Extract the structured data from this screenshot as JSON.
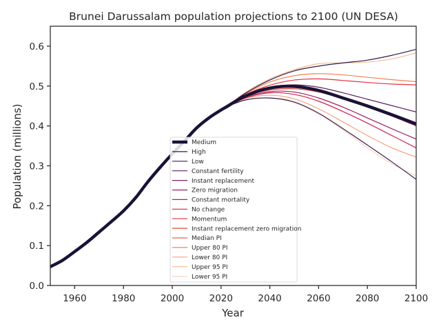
{
  "chart_data": {
    "type": "line",
    "title": "Brunei Darussalam population projections to 2100 (UN DESA)",
    "xlabel": "Year",
    "ylabel": "Population (millions)",
    "xlim": [
      1950,
      2100
    ],
    "ylim": [
      0.0,
      0.65
    ],
    "xticks": [
      1960,
      1980,
      2000,
      2020,
      2040,
      2060,
      2080,
      2100
    ],
    "yticks": [
      0.0,
      0.1,
      0.2,
      0.3,
      0.4,
      0.5,
      0.6
    ],
    "grid": false,
    "legend_position": "bottom-center",
    "historical": {
      "x": [
        1950,
        1955,
        1960,
        1965,
        1970,
        1975,
        1980,
        1985,
        1990,
        1995,
        2000,
        2005,
        2010,
        2015,
        2020,
        2022
      ],
      "y": [
        0.047,
        0.063,
        0.085,
        0.108,
        0.134,
        0.16,
        0.187,
        0.22,
        0.26,
        0.296,
        0.33,
        0.362,
        0.395,
        0.42,
        0.44,
        0.447
      ]
    },
    "series": [
      {
        "name": "Medium",
        "color": "#1b1236",
        "x": [
          2022,
          2030,
          2040,
          2050,
          2060,
          2070,
          2080,
          2090,
          2100
        ],
        "y": [
          0.447,
          0.475,
          0.495,
          0.499,
          0.489,
          0.47,
          0.45,
          0.428,
          0.405
        ]
      },
      {
        "name": "High",
        "color": "#2e1a4a",
        "x": [
          2022,
          2030,
          2040,
          2050,
          2060,
          2070,
          2080,
          2090,
          2100
        ],
        "y": [
          0.447,
          0.482,
          0.515,
          0.538,
          0.55,
          0.558,
          0.565,
          0.577,
          0.592
        ]
      },
      {
        "name": "Low",
        "color": "#3a1d50",
        "x": [
          2022,
          2030,
          2040,
          2050,
          2060,
          2070,
          2080,
          2090,
          2100
        ],
        "y": [
          0.447,
          0.465,
          0.47,
          0.46,
          0.432,
          0.393,
          0.352,
          0.31,
          0.266
        ]
      },
      {
        "name": "Constant fertility",
        "color": "#5c1f5b",
        "x": [
          2022,
          2030,
          2040,
          2050,
          2060,
          2070,
          2080,
          2090,
          2100
        ],
        "y": [
          0.447,
          0.476,
          0.497,
          0.503,
          0.497,
          0.483,
          0.467,
          0.451,
          0.435
        ]
      },
      {
        "name": "Instant replacement",
        "color": "#7d1f60",
        "x": [
          2022,
          2030,
          2040,
          2050,
          2060,
          2070,
          2080,
          2090,
          2100
        ],
        "y": [
          0.447,
          0.476,
          0.494,
          0.498,
          0.49,
          0.472,
          0.452,
          0.431,
          0.408
        ]
      },
      {
        "name": "Zero migration",
        "color": "#a01b60",
        "x": [
          2022,
          2030,
          2040,
          2050,
          2060,
          2070,
          2080,
          2090,
          2100
        ],
        "y": [
          0.447,
          0.472,
          0.486,
          0.485,
          0.47,
          0.447,
          0.42,
          0.393,
          0.367
        ]
      },
      {
        "name": "Constant mortality",
        "color": "#bb1a5a",
        "x": [
          2022,
          2030,
          2040,
          2050,
          2060,
          2070,
          2080,
          2090,
          2100
        ],
        "y": [
          0.447,
          0.474,
          0.493,
          0.497,
          0.487,
          0.469,
          0.448,
          0.425,
          0.4
        ]
      },
      {
        "name": "No change",
        "color": "#d0204f",
        "x": [
          2022,
          2030,
          2040,
          2050,
          2060,
          2070,
          2080,
          2090,
          2100
        ],
        "y": [
          0.447,
          0.47,
          0.483,
          0.479,
          0.462,
          0.436,
          0.407,
          0.376,
          0.345
        ]
      },
      {
        "name": "Momentum",
        "color": "#e13143",
        "x": [
          2022,
          2030,
          2040,
          2050,
          2060,
          2070,
          2080,
          2090,
          2100
        ],
        "y": [
          0.447,
          0.478,
          0.502,
          0.515,
          0.518,
          0.514,
          0.509,
          0.505,
          0.503
        ]
      },
      {
        "name": "Instant replacement zero migration",
        "color": "#ea4335",
        "x": [
          2022,
          2030,
          2040,
          2050,
          2060,
          2070,
          2080,
          2090,
          2100
        ],
        "y": [
          0.447,
          0.474,
          0.49,
          0.493,
          0.485,
          0.468,
          0.448,
          0.427,
          0.404
        ]
      },
      {
        "name": "Median PI",
        "color": "#f06043",
        "x": [
          2022,
          2030,
          2040,
          2050,
          2060,
          2070,
          2080,
          2090,
          2100
        ],
        "y": [
          0.447,
          0.475,
          0.494,
          0.499,
          0.49,
          0.471,
          0.451,
          0.429,
          0.407
        ]
      },
      {
        "name": "Upper 80 PI",
        "color": "#f48050",
        "x": [
          2022,
          2030,
          2040,
          2050,
          2060,
          2070,
          2080,
          2090,
          2100
        ],
        "y": [
          0.447,
          0.48,
          0.51,
          0.526,
          0.531,
          0.528,
          0.522,
          0.516,
          0.511
        ]
      },
      {
        "name": "Lower 80 PI",
        "color": "#f6a07a",
        "x": [
          2022,
          2030,
          2040,
          2050,
          2060,
          2070,
          2080,
          2090,
          2100
        ],
        "y": [
          0.447,
          0.469,
          0.477,
          0.468,
          0.443,
          0.41,
          0.376,
          0.345,
          0.322
        ]
      },
      {
        "name": "Upper 95 PI",
        "color": "#f7bb98",
        "x": [
          2022,
          2030,
          2040,
          2050,
          2060,
          2070,
          2080,
          2090,
          2100
        ],
        "y": [
          0.447,
          0.484,
          0.518,
          0.541,
          0.556,
          0.558,
          0.56,
          0.568,
          0.583
        ]
      },
      {
        "name": "Lower 95 PI",
        "color": "#f8d6c0",
        "x": [
          2022,
          2030,
          2040,
          2050,
          2060,
          2070,
          2080,
          2090,
          2100
        ],
        "y": [
          0.447,
          0.466,
          0.47,
          0.458,
          0.43,
          0.39,
          0.345,
          0.305,
          0.275
        ]
      }
    ]
  }
}
